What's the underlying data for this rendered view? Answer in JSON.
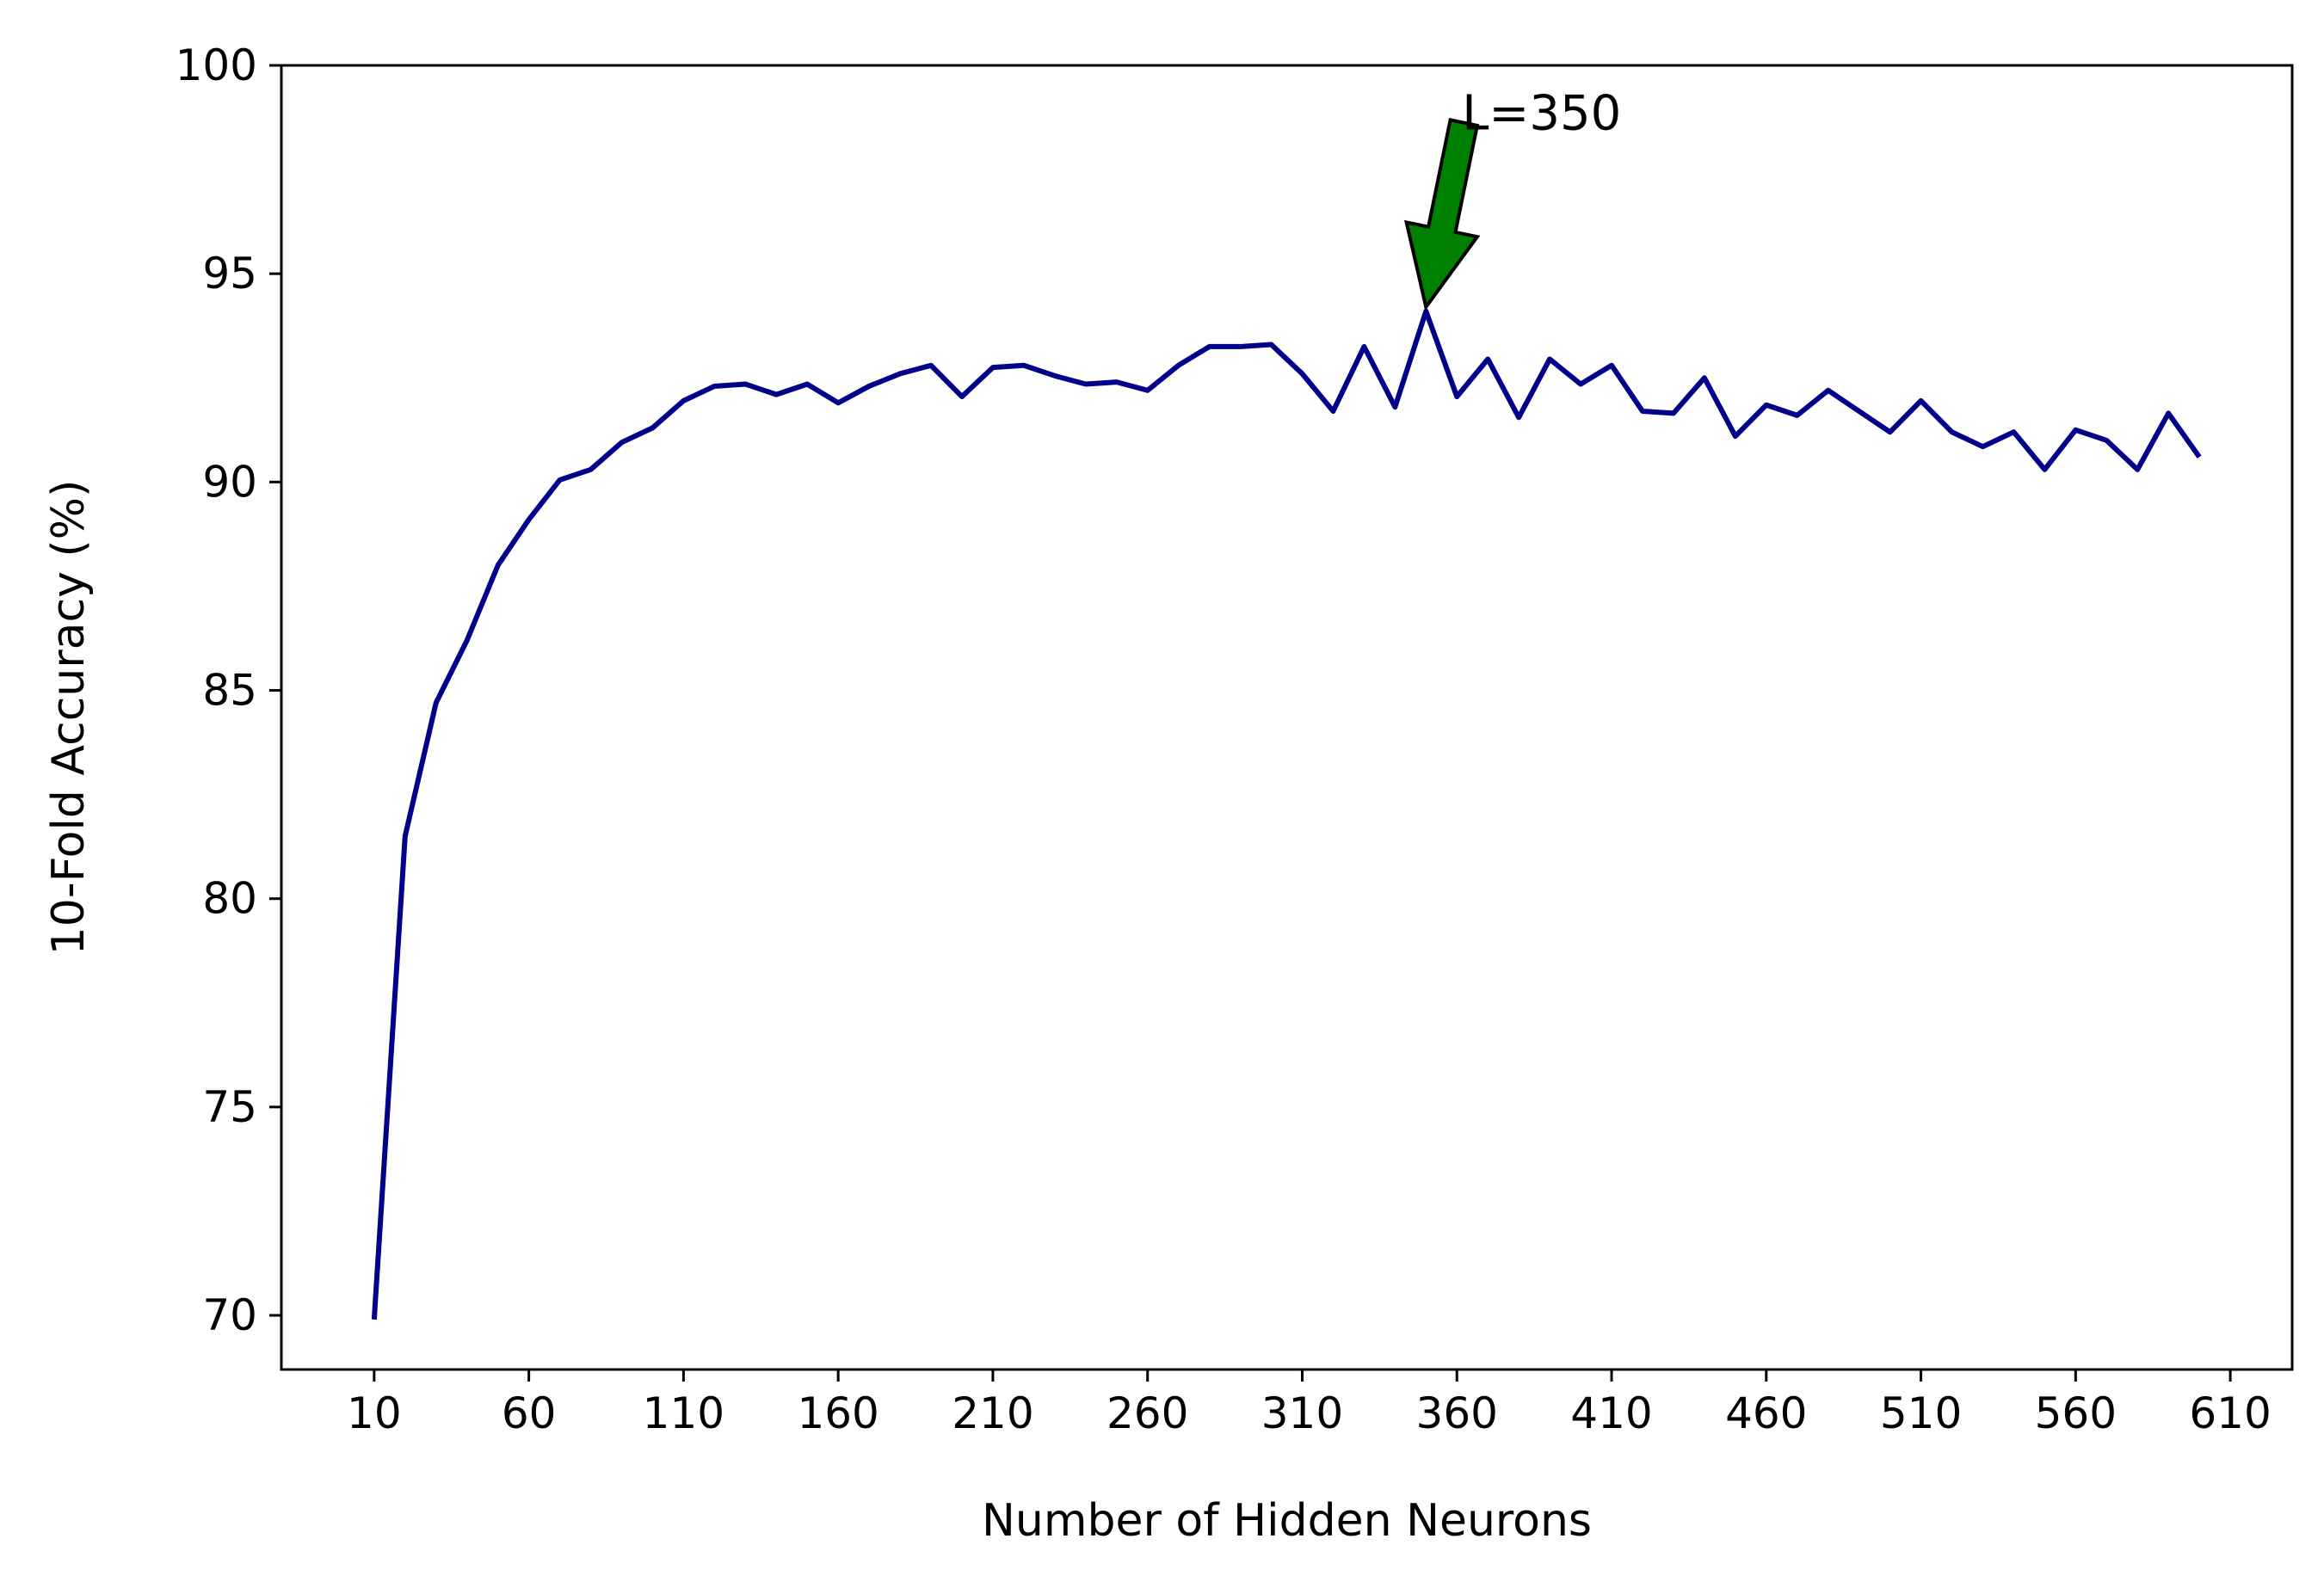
{
  "chart_data": {
    "type": "line",
    "title": "",
    "xlabel": "Number of Hidden Neurons",
    "ylabel": "10-Fold Accuracy (%)",
    "xlim": [
      -20,
      630
    ],
    "ylim": [
      68.7,
      100
    ],
    "xticks": [
      10,
      60,
      110,
      160,
      210,
      260,
      310,
      360,
      410,
      460,
      510,
      560,
      610
    ],
    "yticks": [
      70,
      75,
      80,
      85,
      90,
      95,
      100
    ],
    "grid": false,
    "series": [
      {
        "color": "#00008b",
        "x": [
          10,
          20,
          30,
          40,
          50,
          60,
          70,
          80,
          90,
          100,
          110,
          120,
          130,
          140,
          150,
          160,
          170,
          180,
          190,
          200,
          210,
          220,
          230,
          240,
          250,
          260,
          270,
          280,
          290,
          300,
          310,
          320,
          330,
          340,
          350,
          360,
          370,
          380,
          390,
          400,
          410,
          420,
          430,
          440,
          450,
          460,
          470,
          480,
          490,
          500,
          510,
          520,
          530,
          540,
          550,
          560,
          570,
          580,
          590,
          600
        ],
        "y": [
          69.9,
          81.5,
          84.7,
          86.2,
          88.0,
          89.1,
          90.05,
          90.3,
          90.95,
          91.3,
          91.95,
          92.3,
          92.35,
          92.1,
          92.35,
          91.9,
          92.3,
          92.6,
          92.8,
          92.05,
          92.75,
          92.8,
          92.55,
          92.35,
          92.4,
          92.2,
          92.8,
          93.25,
          93.25,
          93.3,
          92.6,
          91.7,
          93.25,
          91.8,
          94.1,
          92.05,
          92.95,
          91.55,
          92.95,
          92.35,
          92.8,
          91.7,
          91.65,
          92.5,
          91.1,
          91.85,
          91.6,
          92.2,
          91.7,
          91.2,
          91.95,
          91.2,
          90.85,
          91.2,
          90.3,
          91.25,
          91.0,
          90.3,
          91.65,
          90.6
        ]
      }
    ],
    "annotation": {
      "text": "L=350",
      "point": [
        350,
        94.2
      ],
      "text_pos": [
        360,
        98.5
      ],
      "arrow_color": "#008000"
    }
  }
}
